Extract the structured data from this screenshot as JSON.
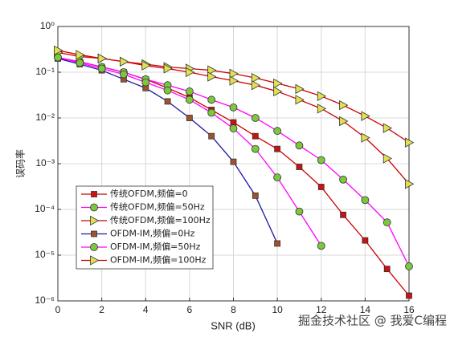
{
  "chart_data": {
    "type": "line",
    "xlabel": "SNR (dB)",
    "ylabel": "误码率",
    "log_y": true,
    "grid": true,
    "legend": "lower left",
    "watermark": "掘金技术社区 @ 我爱C编程",
    "x": [
      0,
      1,
      2,
      3,
      4,
      5,
      6,
      7,
      8,
      9,
      10,
      11,
      12,
      13,
      14,
      15,
      16
    ],
    "xlim": [
      0,
      16
    ],
    "xticks": [
      0,
      2,
      4,
      6,
      8,
      10,
      12,
      14,
      16
    ],
    "ylim": [
      1e-06,
      1
    ],
    "yticks": [
      {
        "value": 1e-06,
        "label": "10⁻⁶"
      },
      {
        "value": 1e-05,
        "label": "10⁻⁵"
      },
      {
        "value": 0.0001,
        "label": "10⁻⁴"
      },
      {
        "value": 0.001,
        "label": "10⁻³"
      },
      {
        "value": 0.01,
        "label": "10⁻²"
      },
      {
        "value": 0.1,
        "label": "10⁻¹"
      },
      {
        "value": 1,
        "label": "10⁰"
      }
    ],
    "series": [
      {
        "name": "传统OFDM,频偏=0",
        "color": "#cc0000",
        "marker": "square",
        "marker_color": "#cc1111",
        "values": [
          0.2,
          0.17,
          0.13,
          0.1,
          0.07,
          0.045,
          0.028,
          0.015,
          0.008,
          0.004,
          0.0021,
          0.00085,
          0.00031,
          7.6e-05,
          2.1e-05,
          5e-06,
          1.3e-06
        ]
      },
      {
        "name": "传统OFDM,频偏=50Hz",
        "color": "#ff00ff",
        "marker": "circle",
        "marker_color": "#7cc83c",
        "values": [
          0.21,
          0.17,
          0.13,
          0.1,
          0.07,
          0.052,
          0.038,
          0.025,
          0.017,
          0.01,
          0.0052,
          0.0025,
          0.0012,
          0.00045,
          0.00016,
          5.2e-05,
          5.7e-06
        ]
      },
      {
        "name": "传统OFDM,频偏=100Hz",
        "color": "#cc0000",
        "marker": "triangle",
        "marker_color": "#e0e050",
        "values": [
          0.27,
          0.22,
          0.2,
          0.17,
          0.15,
          0.13,
          0.12,
          0.11,
          0.093,
          0.075,
          0.057,
          0.043,
          0.03,
          0.019,
          0.011,
          0.006,
          0.0029
        ]
      },
      {
        "name": "OFDM-IM,频偏=0Hz",
        "color": "#1a1aa0",
        "marker": "square",
        "marker_color": "#a0522d",
        "values": [
          0.2,
          0.15,
          0.11,
          0.07,
          0.045,
          0.023,
          0.01,
          0.004,
          0.0011,
          0.0002,
          1.8e-05,
          null,
          null,
          null,
          null,
          null,
          null
        ]
      },
      {
        "name": "OFDM-IM,频偏=50Hz",
        "color": "#ff00ff",
        "marker": "circle",
        "marker_color": "#7cc83c",
        "values": [
          0.21,
          0.16,
          0.12,
          0.09,
          0.06,
          0.04,
          0.025,
          0.013,
          0.0059,
          0.0021,
          0.0005,
          9e-05,
          1.6e-05,
          null,
          null,
          null,
          null
        ]
      },
      {
        "name": "OFDM-IM,频偏=100Hz",
        "color": "#cc0000",
        "marker": "triangle",
        "marker_color": "#e0e050",
        "values": [
          0.3,
          0.24,
          0.2,
          0.17,
          0.14,
          0.12,
          0.1,
          0.08,
          0.065,
          0.052,
          0.038,
          0.025,
          0.016,
          0.0085,
          0.0037,
          0.0013,
          0.00036
        ]
      }
    ]
  }
}
